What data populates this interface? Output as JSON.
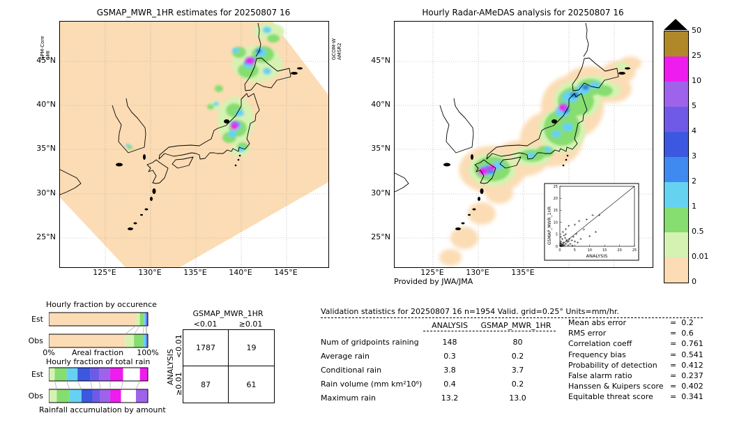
{
  "left_map": {
    "side_label_left": "GPM-Core\nGMI",
    "side_label_right": "GCOM-W\nAMSR2"
  },
  "right_map": {
    "credit": "Provided by JWA/JMA"
  },
  "colorbar": {
    "units": "mm/hr",
    "tick_labels": [
      "50",
      "25",
      "10",
      "5",
      "4",
      "3",
      "2",
      "1",
      "0.5",
      "0.01",
      "0"
    ],
    "band_colors_top_to_bottom": [
      "#b0882a",
      "#ee1cee",
      "#9e63ea",
      "#6f5ae8",
      "#3c58e0",
      "#3f8af0",
      "#66d2f2",
      "#86dd70",
      "#d6f2b2",
      "#fbdcb4"
    ],
    "overflow_marker_color": "#000000"
  },
  "fractions": {
    "occurrence": {
      "title": "Hourly fraction by occurence",
      "rows": [
        "Est",
        "Obs"
      ],
      "axis_left": "0%",
      "axis_label": "Areal fraction",
      "axis_right": "100%",
      "est": [
        {
          "c": "#fbdcb4",
          "p": 88
        },
        {
          "c": "#d6f2b2",
          "p": 4
        },
        {
          "c": "#86dd70",
          "p": 4
        },
        {
          "c": "#66d2f2",
          "p": 2
        },
        {
          "c": "#3f8af0",
          "p": 1
        },
        {
          "c": "#ee1cee",
          "p": 1
        }
      ],
      "obs": [
        {
          "c": "#fbdcb4",
          "p": 77
        },
        {
          "c": "#d6f2b2",
          "p": 9
        },
        {
          "c": "#86dd70",
          "p": 9
        },
        {
          "c": "#66d2f2",
          "p": 3
        },
        {
          "c": "#3f8af0",
          "p": 1
        },
        {
          "c": "#9e63ea",
          "p": 1
        }
      ]
    },
    "total_rain": {
      "title": "Hourly fraction of total rain",
      "rows": [
        "Est",
        "Obs"
      ],
      "caption": "Rainfall accumulation by amount",
      "est": [
        {
          "c": "#d6f2b2",
          "p": 6
        },
        {
          "c": "#86dd70",
          "p": 12
        },
        {
          "c": "#66d2f2",
          "p": 11
        },
        {
          "c": "#3c58e0",
          "p": 13
        },
        {
          "c": "#6f5ae8",
          "p": 9
        },
        {
          "c": "#9e63ea",
          "p": 11
        },
        {
          "c": "#ee1cee",
          "p": 13
        },
        {
          "c": "#ffffff",
          "p": 17
        },
        {
          "c": "#ee1cee",
          "p": 8
        }
      ],
      "obs": [
        {
          "c": "#d6f2b2",
          "p": 8
        },
        {
          "c": "#86dd70",
          "p": 13
        },
        {
          "c": "#66d2f2",
          "p": 12
        },
        {
          "c": "#3c58e0",
          "p": 11
        },
        {
          "c": "#6f5ae8",
          "p": 8
        },
        {
          "c": "#9e63ea",
          "p": 10
        },
        {
          "c": "#ee1cee",
          "p": 11
        },
        {
          "c": "#ffffff",
          "p": 15
        },
        {
          "c": "#9e63ea",
          "p": 12
        }
      ]
    }
  },
  "validation": {
    "summary_stats": [
      {
        "label": "Mean abs error",
        "value": "0.2"
      },
      {
        "label": "RMS error",
        "value": "0.6"
      },
      {
        "label": "Correlation coeff",
        "value": "0.761"
      },
      {
        "label": "Frequency bias",
        "value": "0.541"
      },
      {
        "label": "Probability of detection",
        "value": "0.412"
      },
      {
        "label": "False alarm ratio",
        "value": "0.237"
      },
      {
        "label": "Hanssen & Kuipers score",
        "value": "0.402"
      },
      {
        "label": "Equitable threat score",
        "value": "0.341"
      }
    ]
  },
  "chart_data": [
    {
      "type": "heatmap",
      "title": "GSMAP_MWR_1HR estimates for 20250807 16",
      "xticks": [
        "125°E",
        "130°E",
        "135°E",
        "140°E",
        "145°E"
      ],
      "yticks": [
        "45°N",
        "40°N",
        "35°N",
        "30°N",
        "25°N"
      ],
      "levels_mm_per_hr": [
        0,
        0.01,
        0.5,
        1,
        2,
        3,
        4,
        5,
        10,
        25,
        50
      ],
      "annotations": [
        "GPM-Core GMI",
        "GCOM-W AMSR2"
      ],
      "legend_position": "right"
    },
    {
      "type": "heatmap",
      "title": "Hourly Radar-AMeDAS analysis for 20250807 16",
      "xticks": [
        "125°E",
        "130°E",
        "135°E"
      ],
      "yticks": [
        "45°N",
        "40°N",
        "35°N",
        "30°N",
        "25°N"
      ],
      "levels_mm_per_hr": [
        0,
        0.01,
        0.5,
        1,
        2,
        3,
        4,
        5,
        10,
        25,
        50
      ],
      "annotations": [
        "Provided by JWA/JMA"
      ]
    },
    {
      "type": "scatter",
      "xlabel": "ANALYSIS",
      "ylabel": "GSMAP_MWR_1HR",
      "xlim": [
        0,
        25
      ],
      "ylim": [
        0,
        25
      ],
      "xticks": [
        0,
        5,
        10,
        15,
        20,
        25
      ],
      "yticks": [
        0,
        5,
        10,
        15,
        20,
        25
      ],
      "identity_line": true,
      "points": [
        [
          0.1,
          0.1
        ],
        [
          0.2,
          0.6
        ],
        [
          0.3,
          0.2
        ],
        [
          0.5,
          1.1
        ],
        [
          0.7,
          0.3
        ],
        [
          1,
          0.8
        ],
        [
          1.2,
          1.6
        ],
        [
          1.5,
          0.5
        ],
        [
          2,
          1
        ],
        [
          2.2,
          2.6
        ],
        [
          2.5,
          1.8
        ],
        [
          3,
          2.1
        ],
        [
          0.4,
          2
        ],
        [
          0.8,
          3
        ],
        [
          1.8,
          3.5
        ],
        [
          3.5,
          1
        ],
        [
          4,
          2.5
        ],
        [
          0.2,
          1.3
        ],
        [
          0.6,
          0.1
        ],
        [
          1.1,
          0.2
        ],
        [
          2.8,
          0.4
        ],
        [
          3.2,
          3
        ],
        [
          4.5,
          4
        ],
        [
          5,
          2
        ],
        [
          0.3,
          3.9
        ],
        [
          1.4,
          4.6
        ],
        [
          2,
          5
        ],
        [
          5.5,
          5.2
        ],
        [
          6,
          1.5
        ],
        [
          4.2,
          0.3
        ],
        [
          7,
          3.1
        ],
        [
          1,
          6
        ],
        [
          2,
          7.2
        ],
        [
          3,
          8.5
        ],
        [
          5,
          9
        ],
        [
          6.5,
          10.5
        ],
        [
          8,
          7
        ],
        [
          9,
          11.2
        ],
        [
          11,
          13
        ],
        [
          13.2,
          13
        ],
        [
          10,
          4.2
        ],
        [
          12,
          6
        ]
      ]
    },
    {
      "type": "table",
      "title": "GSMAP_MWR_1HR",
      "columns": [
        "<0.01",
        "≥0.01"
      ],
      "row_axis": "ANALYSIS",
      "rows": [
        "<0.01",
        "≥0.01"
      ],
      "values": [
        [
          "1787",
          "19"
        ],
        [
          "87",
          "61"
        ]
      ]
    },
    {
      "type": "table",
      "title": "Validation statistics for 20250807 16  n=1954 Valid. grid=0.25° Units=mm/hr.",
      "columns": [
        "ANALYSIS",
        "GSMAP_MWR_1HR"
      ],
      "rows": [
        [
          "Num of gridpoints raining",
          "148",
          "80"
        ],
        [
          "Average rain",
          "0.3",
          "0.2"
        ],
        [
          "Conditional rain",
          "3.8",
          "3.7"
        ],
        [
          "Rain volume (mm km²10⁶)",
          "0.4",
          "0.2"
        ],
        [
          "Maximum rain",
          "13.2",
          "13.0"
        ]
      ]
    },
    {
      "type": "bar",
      "title": "Hourly fraction by occurence",
      "stacked": true,
      "categories": [
        "Est",
        "Obs"
      ],
      "xlabel": "Areal fraction",
      "xlim": [
        "0%",
        "100%"
      ],
      "series": [
        {
          "name": "Est",
          "values": [
            88,
            4,
            4,
            2,
            1,
            1
          ]
        },
        {
          "name": "Obs",
          "values": [
            77,
            9,
            9,
            3,
            1,
            1
          ]
        }
      ]
    },
    {
      "type": "bar",
      "title": "Hourly fraction of total rain",
      "stacked": true,
      "categories": [
        "Est",
        "Obs"
      ],
      "xlabel": "Rainfall accumulation by amount",
      "series": [
        {
          "name": "Est",
          "values": [
            6,
            12,
            11,
            13,
            9,
            11,
            13,
            17,
            8
          ]
        },
        {
          "name": "Obs",
          "values": [
            8,
            13,
            12,
            11,
            8,
            10,
            11,
            15,
            12
          ]
        }
      ]
    }
  ]
}
